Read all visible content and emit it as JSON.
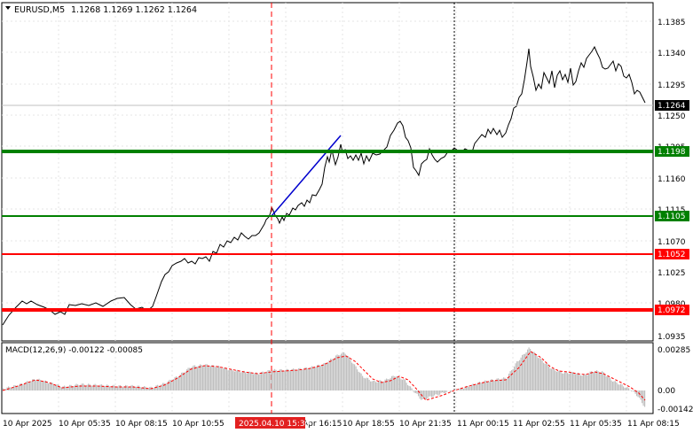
{
  "header": {
    "symbol": "EURUSD,M5",
    "quote": "1.1268 1.1269 1.1262 1.1264"
  },
  "macd": {
    "label": "MACD(12,26,9) -0.00122 -0.00085",
    "scale_labels": [
      "0.00285",
      "0.00",
      "-0.00142"
    ]
  },
  "time_axis": {
    "labels": [
      "10 Apr 2025",
      "10 Apr 05:35",
      "10 Apr 08:15",
      "10 Apr 10:55",
      "Apr 16:15",
      "10 Apr 18:55",
      "10 Apr 21:35",
      "11 Apr 00:15",
      "11 Apr 02:55",
      "11 Apr 05:35",
      "11 Apr 08:15"
    ],
    "highlight": "2025.04.10 15:30"
  },
  "price_axis": {
    "labels": [
      "1.1385",
      "1.1340",
      "1.1295",
      "1.1250",
      "1.1205",
      "1.1160",
      "1.1115",
      "1.1070",
      "1.1025",
      "1.0980",
      "1.0935"
    ]
  },
  "levels": [
    {
      "price": "1.1198",
      "color": "#008000"
    },
    {
      "price": "1.1105",
      "color": "#008000"
    },
    {
      "price": "1.1052",
      "color": "#ff0000"
    },
    {
      "price": "1.0972",
      "color": "#ff0000"
    }
  ],
  "current_price": "1.1264",
  "colors": {
    "bg": "#ffffff",
    "price_line": "#000000",
    "trend": "#0000cd",
    "histogram": "#c0c0c0",
    "signal": "#ff0000",
    "grid": "#e0e0e0"
  }
}
